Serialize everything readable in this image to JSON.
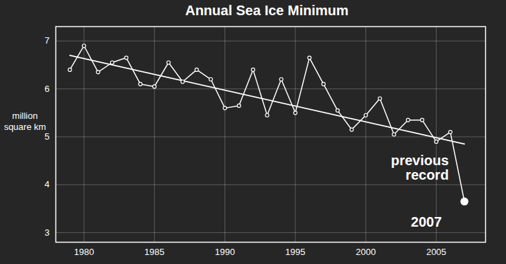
{
  "chart_data": {
    "type": "line",
    "title": "Annual Sea Ice Minimum",
    "y_label": "million square km",
    "x": [
      1979,
      1980,
      1981,
      1982,
      1983,
      1984,
      1985,
      1986,
      1987,
      1988,
      1989,
      1990,
      1991,
      1992,
      1993,
      1994,
      1995,
      1996,
      1997,
      1998,
      1999,
      2000,
      2001,
      2002,
      2003,
      2004,
      2005,
      2006,
      2007
    ],
    "values": [
      6.4,
      6.9,
      6.35,
      6.55,
      6.65,
      6.1,
      6.05,
      6.55,
      6.15,
      6.4,
      6.2,
      5.6,
      5.65,
      6.4,
      5.45,
      6.2,
      5.5,
      6.65,
      6.1,
      5.55,
      5.15,
      5.45,
      5.8,
      5.05,
      5.35,
      5.35,
      4.9,
      5.1,
      3.65
    ],
    "color": "#ffffff",
    "marker": "circle",
    "trend": {
      "x": [
        1979,
        2007
      ],
      "values": [
        6.7,
        4.85
      ]
    },
    "annotations": [
      {
        "text": "previous record",
        "x": 2005
      },
      {
        "text": "2007",
        "x": 2007
      }
    ],
    "xlim": [
      1978,
      2008.5
    ],
    "xticks": [
      1980,
      1985,
      1990,
      1995,
      2000,
      2005
    ],
    "ylim": [
      2.8,
      7.3
    ],
    "yticks": [
      3,
      4,
      5,
      6,
      7
    ],
    "grid": true
  }
}
